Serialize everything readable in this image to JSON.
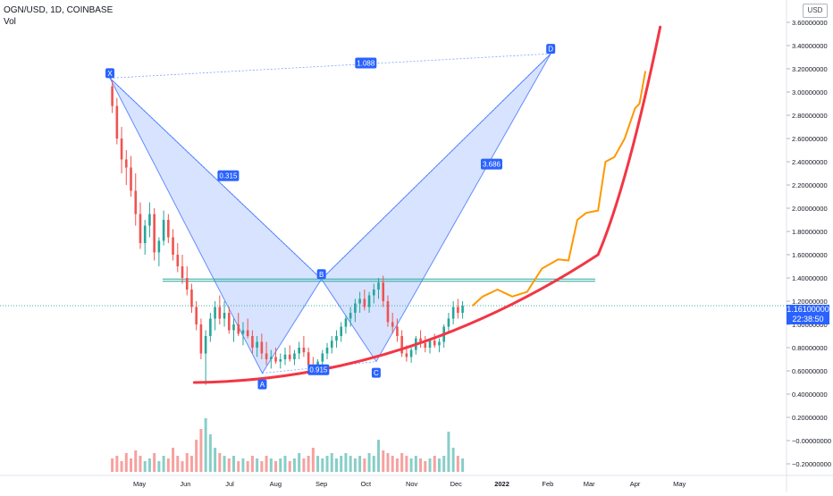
{
  "header": {
    "symbol": "OGN/USD, 1D, COINBASE",
    "volume_label": "Vol"
  },
  "currency_button": "USD",
  "price_badge": {
    "price": "1.16100000",
    "countdown": "22:38:50"
  },
  "chart_data": {
    "type": "candlestick",
    "y_axis": {
      "range": [
        -0.2,
        3.6
      ],
      "tick_labels": [
        "3.60000000",
        "3.40000000",
        "3.20000000",
        "3.00000000",
        "2.80000000",
        "2.60000000",
        "2.40000000",
        "2.20000000",
        "2.00000000",
        "1.80000000",
        "1.60000000",
        "1.40000000",
        "1.20000000",
        "1.00000000",
        "0.80000000",
        "0.60000000",
        "0.40000000",
        "0.20000000",
        "−0.00000000",
        "−0.20000000"
      ],
      "tick_values": [
        3.6,
        3.4,
        3.2,
        3.0,
        2.8,
        2.6,
        2.4,
        2.2,
        2.0,
        1.8,
        1.6,
        1.4,
        1.2,
        1.0,
        0.8,
        0.6,
        0.4,
        0.2,
        0.0,
        -0.2
      ]
    },
    "x_axis": {
      "labels": [
        "May",
        "Jun",
        "Jul",
        "Aug",
        "Sep",
        "Oct",
        "Nov",
        "Dec",
        "2022",
        "Feb",
        "Mar",
        "Apr",
        "May"
      ],
      "bold": [
        false,
        false,
        false,
        false,
        false,
        false,
        false,
        false,
        true,
        false,
        false,
        false,
        false
      ],
      "days": [
        20,
        51,
        81,
        112,
        143,
        173,
        204,
        234,
        265,
        296,
        324,
        355,
        385
      ]
    },
    "harmonic_pattern": {
      "points": [
        {
          "label": "X",
          "day": 0,
          "price": 3.12
        },
        {
          "label": "A",
          "day": 103,
          "price": 0.58
        },
        {
          "label": "B",
          "day": 143,
          "price": 1.39
        },
        {
          "label": "C",
          "day": 180,
          "price": 0.68
        },
        {
          "label": "D",
          "day": 298,
          "price": 3.33
        }
      ],
      "ratios": [
        {
          "text": "0.315",
          "between": "XA-AB"
        },
        {
          "text": "0.915",
          "between": "AB-BC"
        },
        {
          "text": "3.686",
          "between": "BC-CD"
        },
        {
          "text": "1.088",
          "between": "XA-XD"
        }
      ]
    },
    "last_price": 1.161,
    "candles_ohlc": [
      [
        3.05,
        3.1,
        2.82,
        2.88
      ],
      [
        2.88,
        2.95,
        2.55,
        2.6
      ],
      [
        2.6,
        2.7,
        2.3,
        2.42
      ],
      [
        2.42,
        2.5,
        2.2,
        2.35
      ],
      [
        2.35,
        2.45,
        2.1,
        2.15
      ],
      [
        2.15,
        2.3,
        1.85,
        1.95
      ],
      [
        1.95,
        2.05,
        1.65,
        1.7
      ],
      [
        1.7,
        1.9,
        1.6,
        1.85
      ],
      [
        1.85,
        2.05,
        1.75,
        1.95
      ],
      [
        1.95,
        2.0,
        1.55,
        1.62
      ],
      [
        1.62,
        1.75,
        1.5,
        1.72
      ],
      [
        1.72,
        1.98,
        1.68,
        1.9
      ],
      [
        1.9,
        1.95,
        1.7,
        1.75
      ],
      [
        1.75,
        1.82,
        1.55,
        1.6
      ],
      [
        1.6,
        1.7,
        1.45,
        1.5
      ],
      [
        1.5,
        1.6,
        1.35,
        1.4
      ],
      [
        1.4,
        1.5,
        1.25,
        1.3
      ],
      [
        1.3,
        1.35,
        1.1,
        1.15
      ],
      [
        1.15,
        1.2,
        0.95,
        1.0
      ],
      [
        1.0,
        1.05,
        0.7,
        0.75
      ],
      [
        0.75,
        0.95,
        0.48,
        0.9
      ],
      [
        0.9,
        1.1,
        0.85,
        1.05
      ],
      [
        1.05,
        1.2,
        0.95,
        1.15
      ],
      [
        1.15,
        1.25,
        1.0,
        1.05
      ],
      [
        1.05,
        1.2,
        0.98,
        1.1
      ],
      [
        1.1,
        1.15,
        0.92,
        0.95
      ],
      [
        0.95,
        1.05,
        0.85,
        1.0
      ],
      [
        1.0,
        1.1,
        0.9,
        0.92
      ],
      [
        0.92,
        1.02,
        0.82,
        0.95
      ],
      [
        0.95,
        1.05,
        0.88,
        0.9
      ],
      [
        0.9,
        0.95,
        0.75,
        0.8
      ],
      [
        0.8,
        0.9,
        0.72,
        0.85
      ],
      [
        0.85,
        0.92,
        0.7,
        0.75
      ],
      [
        0.75,
        0.85,
        0.65,
        0.7
      ],
      [
        0.7,
        0.78,
        0.62,
        0.72
      ],
      [
        0.72,
        0.8,
        0.66,
        0.68
      ],
      [
        0.68,
        0.75,
        0.62,
        0.7
      ],
      [
        0.7,
        0.8,
        0.65,
        0.74
      ],
      [
        0.74,
        0.82,
        0.68,
        0.7
      ],
      [
        0.7,
        0.78,
        0.65,
        0.75
      ],
      [
        0.75,
        0.85,
        0.7,
        0.8
      ],
      [
        0.8,
        0.9,
        0.72,
        0.76
      ],
      [
        0.76,
        0.8,
        0.62,
        0.65
      ],
      [
        0.65,
        0.72,
        0.58,
        0.62
      ],
      [
        0.62,
        0.7,
        0.58,
        0.68
      ],
      [
        0.68,
        0.78,
        0.64,
        0.75
      ],
      [
        0.75,
        0.84,
        0.7,
        0.8
      ],
      [
        0.8,
        0.9,
        0.75,
        0.86
      ],
      [
        0.86,
        0.95,
        0.8,
        0.9
      ],
      [
        0.9,
        1.02,
        0.85,
        0.98
      ],
      [
        0.98,
        1.08,
        0.92,
        1.05
      ],
      [
        1.05,
        1.15,
        0.98,
        1.1
      ],
      [
        1.1,
        1.22,
        1.02,
        1.18
      ],
      [
        1.18,
        1.28,
        1.1,
        1.22
      ],
      [
        1.22,
        1.3,
        1.12,
        1.15
      ],
      [
        1.15,
        1.28,
        1.1,
        1.25
      ],
      [
        1.25,
        1.35,
        1.18,
        1.3
      ],
      [
        1.3,
        1.4,
        1.22,
        1.36
      ],
      [
        1.36,
        1.42,
        1.15,
        1.2
      ],
      [
        1.2,
        1.25,
        0.98,
        1.02
      ],
      [
        1.02,
        1.1,
        0.92,
        0.98
      ],
      [
        0.98,
        1.05,
        0.85,
        0.9
      ],
      [
        0.9,
        0.95,
        0.72,
        0.75
      ],
      [
        0.75,
        0.82,
        0.68,
        0.72
      ],
      [
        0.72,
        0.8,
        0.67,
        0.78
      ],
      [
        0.78,
        0.9,
        0.74,
        0.88
      ],
      [
        0.88,
        0.95,
        0.8,
        0.84
      ],
      [
        0.84,
        0.9,
        0.76,
        0.8
      ],
      [
        0.8,
        0.88,
        0.75,
        0.86
      ],
      [
        0.86,
        0.92,
        0.8,
        0.82
      ],
      [
        0.82,
        0.88,
        0.76,
        0.85
      ],
      [
        0.85,
        1.0,
        0.8,
        0.98
      ],
      [
        0.98,
        1.1,
        0.92,
        1.05
      ],
      [
        1.05,
        1.2,
        1.0,
        1.15
      ],
      [
        1.15,
        1.22,
        1.05,
        1.1
      ],
      [
        1.1,
        1.2,
        1.05,
        1.16
      ]
    ],
    "volume_relative": [
      0.25,
      0.3,
      0.2,
      0.35,
      0.25,
      0.4,
      0.3,
      0.2,
      0.25,
      0.35,
      0.2,
      0.3,
      0.25,
      0.45,
      0.3,
      0.2,
      0.35,
      0.3,
      0.6,
      0.8,
      1.0,
      0.7,
      0.45,
      0.35,
      0.3,
      0.25,
      0.3,
      0.2,
      0.25,
      0.2,
      0.3,
      0.25,
      0.2,
      0.3,
      0.25,
      0.2,
      0.25,
      0.3,
      0.2,
      0.25,
      0.35,
      0.25,
      0.3,
      0.45,
      0.3,
      0.25,
      0.3,
      0.35,
      0.25,
      0.3,
      0.35,
      0.3,
      0.25,
      0.3,
      0.25,
      0.35,
      0.3,
      0.6,
      0.4,
      0.35,
      0.3,
      0.25,
      0.35,
      0.3,
      0.25,
      0.3,
      0.25,
      0.2,
      0.25,
      0.3,
      0.25,
      0.3,
      0.75,
      0.45,
      0.3,
      0.25
    ]
  },
  "colors": {
    "up": "#26a69a",
    "down": "#ef5350",
    "pattern_line": "#2962ff",
    "pattern_fill": "#2962ff",
    "hline": "#26a69a",
    "red_curve": "#f23645",
    "orange_path": "#ff9800",
    "axis_text": "#131722"
  }
}
